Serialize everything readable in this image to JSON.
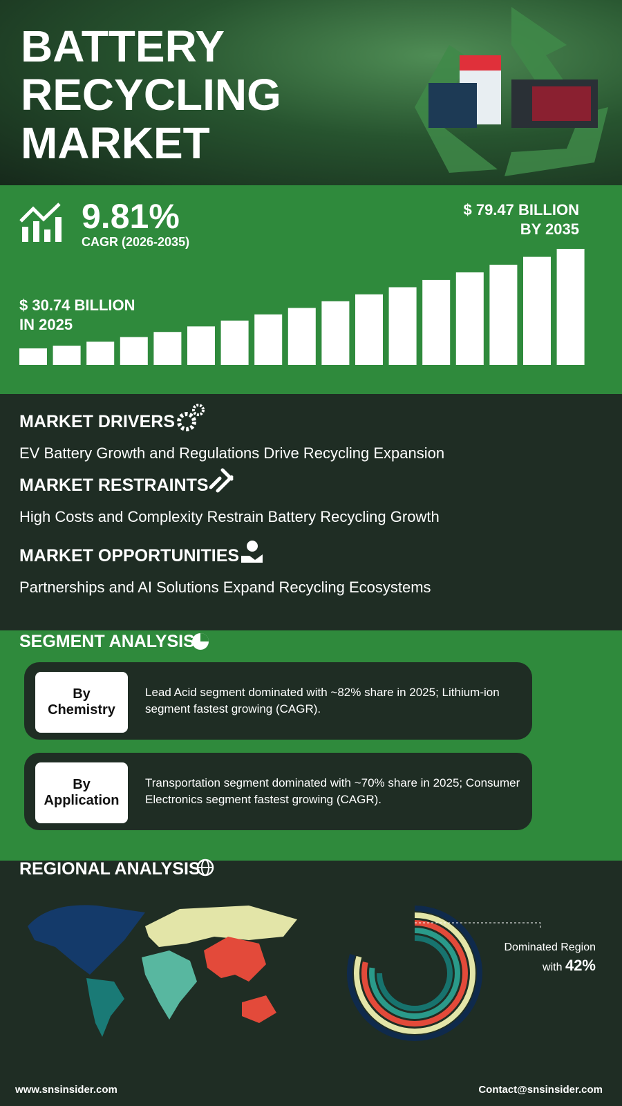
{
  "header": {
    "title": [
      "BATTERY",
      "RECYCLING",
      "MARKET"
    ]
  },
  "growth": {
    "cagr": "9.81%",
    "cagr_label": "CAGR (2026-2035)",
    "end_value": [
      "$ 79.47 BILLION",
      "BY 2035"
    ],
    "start_value": [
      "$ 30.74 BILLION",
      "IN 2025"
    ]
  },
  "insights": [
    {
      "heading": "MARKET DRIVERS",
      "text": "EV Battery Growth and Regulations Drive Recycling Expansion"
    },
    {
      "heading": "MARKET RESTRAINTS",
      "text": "High Costs and Complexity Restrain Battery Recycling Growth"
    },
    {
      "heading": "MARKET OPPORTUNITIES",
      "text": "Partnerships and AI Solutions Expand Recycling Ecosystems"
    }
  ],
  "segments": {
    "title": "SEGMENT ANALYSIS",
    "items": [
      {
        "label": [
          "By",
          "Chemistry"
        ],
        "text": "Lead Acid segment dominated with ~82% share in 2025; Lithium-ion segment fastest growing (CAGR)."
      },
      {
        "label": [
          "By",
          "Application"
        ],
        "text": "Transportation segment dominated with ~70% share in 2025; Consumer Electronics segment fastest growing (CAGR)."
      }
    ]
  },
  "regional": {
    "title": "REGIONAL ANALYSIS",
    "caption": "Dominated Region",
    "caption_prefix": "with",
    "share": "42%"
  },
  "footer": {
    "website": "www.snsinsider.com",
    "contact": "Contact@snsinsider.com"
  }
}
